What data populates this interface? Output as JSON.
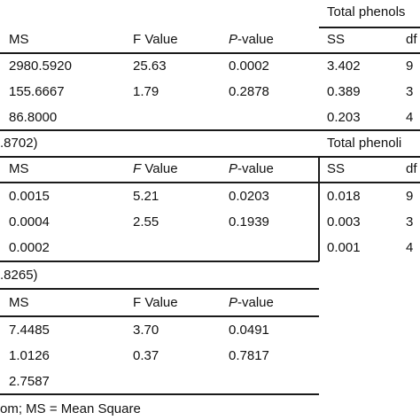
{
  "block1": {
    "title_right": "Total phenols",
    "headers": {
      "ms": "MS",
      "f": "F Value",
      "p_prefix": "P",
      "p_suffix": "-value",
      "ss": "SS",
      "df": "df"
    },
    "rows": [
      {
        "ms": "2980.5920",
        "f": "25.63",
        "p": "0.0002",
        "ss": "3.402",
        "df": "9"
      },
      {
        "ms": "155.6667",
        "f": "1.79",
        "p": "0.2878",
        "ss": "0.389",
        "df": "3"
      },
      {
        "ms": "86.8000",
        "f": "",
        "p": "",
        "ss": "0.203",
        "df": "4"
      }
    ]
  },
  "block2": {
    "label_left": ".8702)",
    "title_right": "Total phenoli",
    "headers": {
      "ms": "MS",
      "f_prefix": "F",
      "f_suffix": " Value",
      "p_prefix": "P",
      "p_suffix": "-value",
      "ss": "SS",
      "df": "df"
    },
    "rows": [
      {
        "ms": "0.0015",
        "f": "5.21",
        "p": "0.0203",
        "ss": "0.018",
        "df": "9"
      },
      {
        "ms": "0.0004",
        "f": "2.55",
        "p": "0.1939",
        "ss": "0.003",
        "df": "3"
      },
      {
        "ms": "0.0002",
        "f": "",
        "p": "",
        "ss": "0.001",
        "df": "4"
      }
    ]
  },
  "block3": {
    "label_left": ".8265)",
    "headers": {
      "ms": "MS",
      "f": "F Value",
      "p_prefix": "P",
      "p_suffix": "-value"
    },
    "rows": [
      {
        "ms": "7.4485",
        "f": "3.70",
        "p": "0.0491"
      },
      {
        "ms": "1.0126",
        "f": "0.37",
        "p": "0.7817"
      },
      {
        "ms": "2.7587",
        "f": "",
        "p": ""
      }
    ]
  },
  "footnote": "om; MS = Mean Square"
}
